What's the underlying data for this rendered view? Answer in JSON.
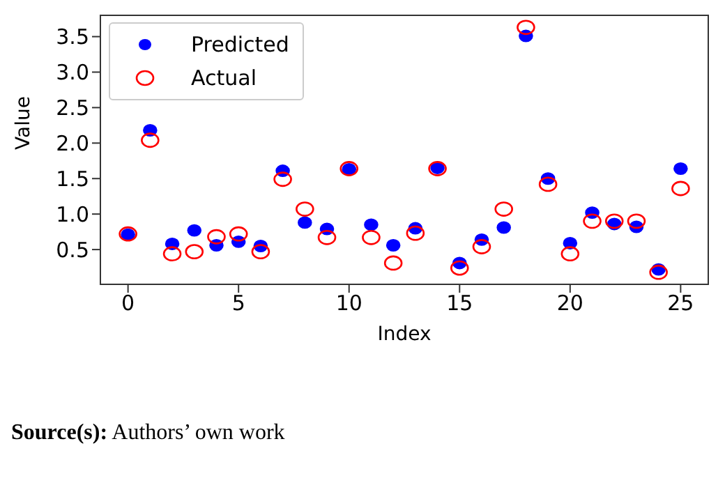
{
  "chart_data": {
    "type": "scatter",
    "xlabel": "Index",
    "ylabel": "Value",
    "annotations": [
      "Source(s): Authors’ own work"
    ],
    "x": [
      0,
      1,
      2,
      3,
      4,
      5,
      6,
      7,
      8,
      9,
      10,
      11,
      12,
      13,
      14,
      15,
      16,
      17,
      18,
      19,
      20,
      21,
      22,
      23,
      24,
      25
    ],
    "series": [
      {
        "name": "Predicted",
        "color": "#0000ff",
        "values": [
          0.71,
          2.18,
          0.58,
          0.77,
          0.56,
          0.61,
          0.55,
          1.61,
          0.88,
          0.79,
          1.63,
          0.85,
          0.56,
          0.8,
          1.65,
          0.31,
          0.64,
          0.81,
          3.51,
          1.5,
          0.59,
          1.02,
          0.86,
          0.82,
          0.22,
          1.64
        ]
      },
      {
        "name": "Actual",
        "color": "#ff0000",
        "values": [
          0.72,
          2.04,
          0.44,
          0.47,
          0.68,
          0.72,
          0.47,
          1.49,
          1.07,
          0.67,
          1.64,
          0.67,
          0.31,
          0.73,
          1.64,
          0.24,
          0.54,
          1.07,
          3.63,
          1.42,
          0.44,
          0.9,
          0.9,
          0.9,
          0.18,
          1.36
        ]
      }
    ],
    "xlim": [
      -1.25,
      26.25
    ],
    "xticks": [
      0,
      5,
      10,
      15,
      20,
      25
    ],
    "ylim": [
      0.01,
      3.8
    ],
    "yticks": [
      0.5,
      {
        "value": 1,
        "label": "1.0"
      },
      1.5,
      {
        "value": 2,
        "label": "2.0"
      },
      2.5,
      {
        "value": 3,
        "label": "3.0"
      },
      3.5
    ],
    "grid": false,
    "legend": "top left",
    "marker": "circle"
  }
}
